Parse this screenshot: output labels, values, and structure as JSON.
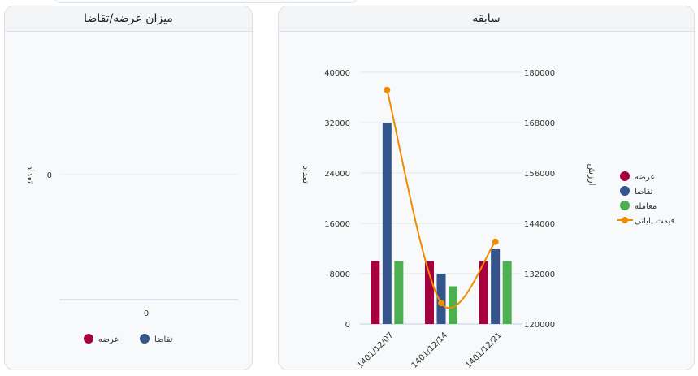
{
  "left_panel": {
    "title": "میزان عرضه/تقاضا",
    "y_axis_label": "تعداد",
    "y_tick": "0",
    "x_tick": "0",
    "legend": [
      {
        "label": "تقاضا",
        "color": "#34558b"
      },
      {
        "label": "عرضه",
        "color": "#a6003f"
      }
    ]
  },
  "right_panel": {
    "title": "سابقه",
    "y_axis_label": "تعداد",
    "y2_axis_label": "ارزش",
    "legend": [
      {
        "label": "عرضه",
        "color": "#a6003f"
      },
      {
        "label": "تقاضا",
        "color": "#34558b"
      },
      {
        "label": "معامله",
        "color": "#4caf50"
      },
      {
        "label": "قیمت پایانی",
        "color": "#f08c00"
      }
    ]
  },
  "chart_data": [
    {
      "type": "bar",
      "title": "میزان عرضه/تقاضا",
      "ylabel": "تعداد",
      "categories": [
        "0"
      ],
      "series": [
        {
          "name": "عرضه",
          "values": [
            0
          ]
        },
        {
          "name": "تقاضا",
          "values": [
            0
          ]
        }
      ],
      "y_ticks": [
        0
      ],
      "legend": "bottom"
    },
    {
      "type": "bar",
      "title": "سابقه",
      "ylabel": "تعداد",
      "y2label": "ارزش",
      "categories": [
        "1401/12/07",
        "1401/12/14",
        "1401/12/21"
      ],
      "series": [
        {
          "name": "عرضه",
          "type": "bar",
          "axis": "left",
          "color": "#a6003f",
          "values": [
            10000,
            10000,
            10000
          ]
        },
        {
          "name": "تقاضا",
          "type": "bar",
          "axis": "left",
          "color": "#34558b",
          "values": [
            32000,
            8000,
            12000
          ]
        },
        {
          "name": "معامله",
          "type": "bar",
          "axis": "left",
          "color": "#4caf50",
          "values": [
            10000,
            6000,
            10000
          ]
        },
        {
          "name": "قیمت پایانی",
          "type": "line",
          "axis": "right",
          "color": "#f08c00",
          "values": [
            175800,
            125000,
            139600
          ]
        }
      ],
      "ylim": [
        0,
        40000
      ],
      "y_ticks": [
        0,
        8000,
        16000,
        24000,
        32000,
        40000
      ],
      "y2lim": [
        120000,
        180000
      ],
      "y2_ticks": [
        120000,
        132000,
        144000,
        156000,
        168000,
        180000
      ],
      "grid": true,
      "legend": "right"
    }
  ]
}
